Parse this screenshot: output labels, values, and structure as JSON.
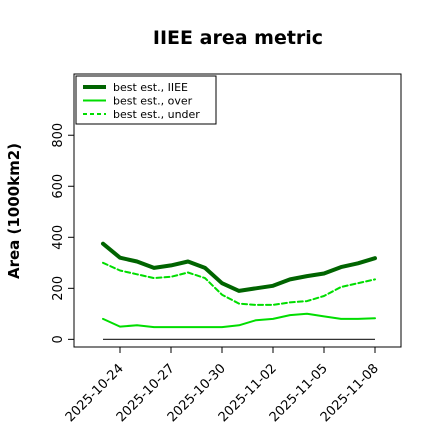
{
  "chart_data": {
    "type": "line",
    "title": "IIEE area metric",
    "xlabel": "",
    "ylabel": "Area (1000km2)",
    "x_tick_labels": [
      "2025-10-24",
      "2025-10-27",
      "2025-10-30",
      "2025-11-02",
      "2025-11-05",
      "2025-11-08"
    ],
    "y_ticks": [
      0,
      200,
      400,
      600,
      800
    ],
    "ylim": [
      -30,
      1040
    ],
    "grid": false,
    "legend_position": "top-left",
    "x": [
      "2025-10-23",
      "2025-10-24",
      "2025-10-25",
      "2025-10-26",
      "2025-10-27",
      "2025-10-28",
      "2025-10-29",
      "2025-10-30",
      "2025-10-31",
      "2025-11-01",
      "2025-11-02",
      "2025-11-03",
      "2025-11-04",
      "2025-11-05",
      "2025-11-06",
      "2025-11-07",
      "2025-11-08"
    ],
    "baseline": {
      "value": 0,
      "color": "#333333"
    },
    "series": [
      {
        "name": "best est., IIEE",
        "color": "#006400",
        "dash": "solid",
        "width": 4,
        "values": [
          375,
          320,
          305,
          280,
          290,
          305,
          280,
          220,
          190,
          200,
          210,
          235,
          248,
          258,
          283,
          298,
          318
        ]
      },
      {
        "name": "best est., over",
        "color": "#00dd00",
        "dash": "solid",
        "width": 2,
        "values": [
          80,
          50,
          55,
          48,
          48,
          48,
          48,
          48,
          55,
          75,
          80,
          95,
          100,
          90,
          80,
          80,
          83
        ]
      },
      {
        "name": "best est., under",
        "color": "#00dd00",
        "dash": "dashed",
        "width": 2,
        "values": [
          300,
          270,
          255,
          240,
          245,
          262,
          240,
          175,
          140,
          135,
          135,
          145,
          150,
          170,
          205,
          220,
          235
        ]
      }
    ]
  }
}
